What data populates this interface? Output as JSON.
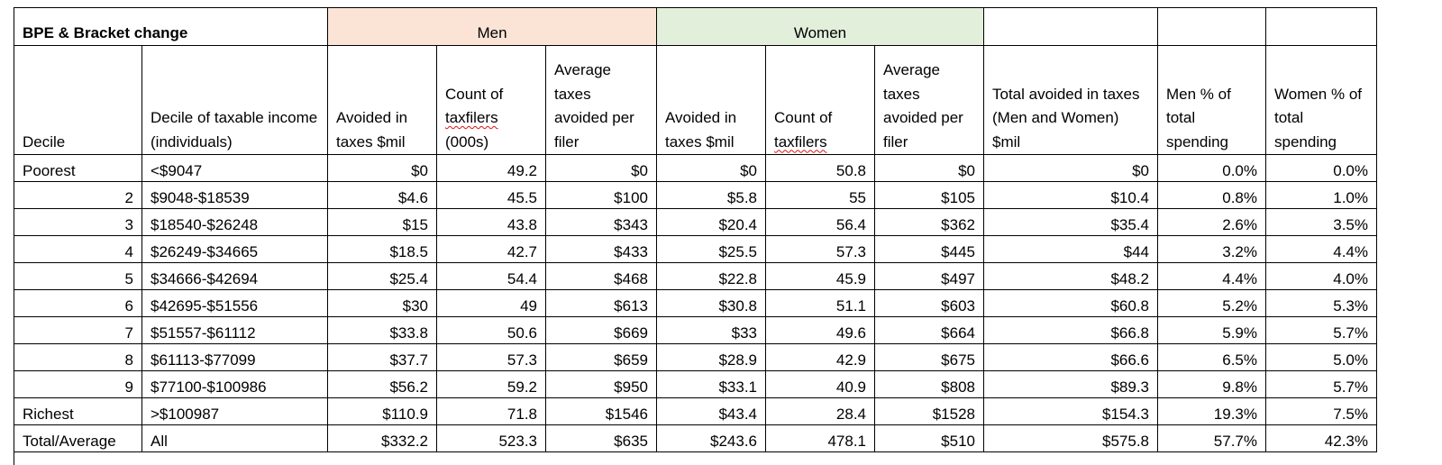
{
  "table": {
    "title": "BPE & Bracket change",
    "groups": {
      "men": "Men",
      "women": "Women"
    },
    "headers": [
      "Decile",
      "Decile of taxable income (individuals)",
      "Avoided in taxes $mil",
      "Count of taxfilers (000s)",
      "Average taxes avoided per filer",
      "Avoided in taxes $mil",
      "Count of taxfilers",
      "Average taxes avoided per filer",
      "Total avoided in taxes (Men and Women) $mil",
      "Men % of total spending",
      "Women % of total spending"
    ],
    "header_parts": {
      "count_000s_pre": "Count of",
      "count_word": "taxfilers",
      "count_000s_post": "(000s)",
      "count_pre": "Count of",
      "count_post": ""
    },
    "rows": [
      [
        "Poorest",
        "<$9047",
        "$0",
        "49.2",
        "$0",
        "$0",
        "50.8",
        "$0",
        "$0",
        "0.0%",
        "0.0%"
      ],
      [
        "2",
        "$9048-$18539",
        "$4.6",
        "45.5",
        "$100",
        "$5.8",
        "55",
        "$105",
        "$10.4",
        "0.8%",
        "1.0%"
      ],
      [
        "3",
        "$18540-$26248",
        "$15",
        "43.8",
        "$343",
        "$20.4",
        "56.4",
        "$362",
        "$35.4",
        "2.6%",
        "3.5%"
      ],
      [
        "4",
        "$26249-$34665",
        "$18.5",
        "42.7",
        "$433",
        "$25.5",
        "57.3",
        "$445",
        "$44",
        "3.2%",
        "4.4%"
      ],
      [
        "5",
        "$34666-$42694",
        "$25.4",
        "54.4",
        "$468",
        "$22.8",
        "45.9",
        "$497",
        "$48.2",
        "4.4%",
        "4.0%"
      ],
      [
        "6",
        "$42695-$51556",
        "$30",
        "49",
        "$613",
        "$30.8",
        "51.1",
        "$603",
        "$60.8",
        "5.2%",
        "5.3%"
      ],
      [
        "7",
        "$51557-$61112",
        "$33.8",
        "50.6",
        "$669",
        "$33",
        "49.6",
        "$664",
        "$66.8",
        "5.9%",
        "5.7%"
      ],
      [
        "8",
        "$61113-$77099",
        "$37.7",
        "57.3",
        "$659",
        "$28.9",
        "42.9",
        "$675",
        "$66.6",
        "6.5%",
        "5.0%"
      ],
      [
        "9",
        "$77100-$100986",
        "$56.2",
        "59.2",
        "$950",
        "$33.1",
        "40.9",
        "$808",
        "$89.3",
        "9.8%",
        "5.7%"
      ],
      [
        "Richest",
        ">$100987",
        "$110.9",
        "71.8",
        "$1546",
        "$43.4",
        "28.4",
        "$1528",
        "$154.3",
        "19.3%",
        "7.5%"
      ],
      [
        "Total/Average",
        "All",
        "$332.2",
        "523.3",
        "$635",
        "$243.6",
        "478.1",
        "$510",
        "$575.8",
        "57.7%",
        "42.3%"
      ]
    ],
    "colors": {
      "men_header_bg": "#fbe4d6",
      "women_header_bg": "#e2efda",
      "spellcheck_underline": "#d11"
    }
  }
}
